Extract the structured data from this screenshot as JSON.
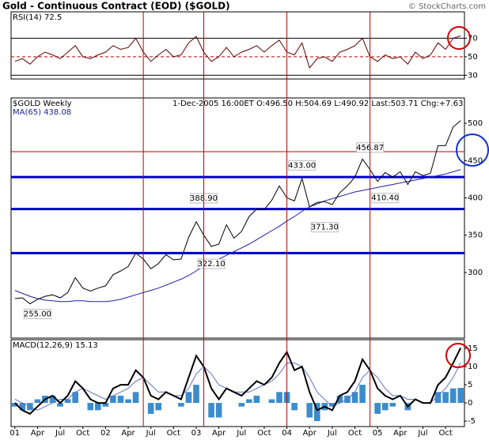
{
  "title": "Gold - Continuous Contract (EOD) ($GOLD)",
  "copyright": "© StockCharts.com",
  "chart_data": [
    {
      "type": "line",
      "label": "RSI(14) 72.5",
      "ylim": [
        26,
        98.5
      ],
      "yticks": [
        30,
        50,
        70
      ],
      "grid": true,
      "reference_line": {
        "value": 50,
        "color": "#c00000"
      },
      "series": [
        {
          "color": "#600000",
          "values": [
            45,
            48,
            42,
            50,
            55,
            52,
            48,
            55,
            62,
            50,
            48,
            52,
            55,
            62,
            58,
            60,
            70,
            55,
            45,
            52,
            58,
            50,
            52,
            65,
            72,
            55,
            45,
            50,
            60,
            50,
            55,
            58,
            62,
            55,
            62,
            68,
            55,
            52,
            65,
            38,
            48,
            50,
            45,
            55,
            58,
            62,
            70,
            50,
            45,
            52,
            48,
            50,
            42,
            55,
            48,
            52,
            65,
            58,
            70,
            72.5
          ]
        }
      ]
    },
    {
      "type": "line",
      "label": "$GOLD Weekly",
      "header": "1-Dec-2005 16:00ET O:496.50 H:504.69 L:490.92 Last:503.71 Chg:+7.63",
      "ylim": [
        212,
        534
      ],
      "yticks": [
        300,
        350,
        400,
        450,
        500
      ],
      "series": [
        {
          "name": "MA(65) 438.08",
          "color": "#2020a0",
          "values": [
            276,
            272,
            268,
            265,
            263,
            262,
            261,
            261,
            262,
            262,
            261,
            261,
            261,
            262,
            264,
            267,
            270,
            273,
            276,
            279,
            283,
            287,
            291,
            296,
            302,
            308,
            313,
            318,
            323,
            328,
            333,
            338,
            344,
            350,
            356,
            362,
            369,
            375,
            382,
            388,
            392,
            396,
            399,
            402,
            405,
            408,
            410,
            412,
            414,
            416,
            418,
            420,
            422,
            424,
            426,
            428,
            430,
            432,
            435,
            438.08
          ]
        },
        {
          "color": "#000000",
          "values": [
            265,
            266,
            258,
            264,
            268,
            270,
            266,
            273,
            293,
            279,
            275,
            279,
            282,
            297,
            302,
            308,
            326,
            318,
            305,
            312,
            324,
            317,
            318,
            347,
            368,
            350,
            335,
            338,
            364,
            346,
            355,
            375,
            385,
            384,
            397,
            416,
            400,
            396,
            426,
            388,
            394,
            395,
            391,
            407,
            416,
            428,
            452,
            438,
            422,
            434,
            428,
            435,
            418,
            435,
            430,
            433,
            470,
            470,
            495,
            503.71
          ]
        }
      ],
      "hlines": [
        {
          "value": 462,
          "color": "#c00000",
          "width": 1
        },
        {
          "value": 428,
          "color": "#0000cc",
          "width": 3
        },
        {
          "value": 385,
          "color": "#0000cc",
          "width": 3
        },
        {
          "value": 326,
          "color": "#0000cc",
          "width": 3
        }
      ],
      "vlines": {
        "color": "#c00000",
        "categories": [
          17,
          25,
          36,
          47
        ]
      },
      "annotations": [
        {
          "category": 3,
          "value": 255,
          "label": "255.00",
          "position": "below"
        },
        {
          "category": 25,
          "value": 388.9,
          "label": "388.90",
          "position": "above"
        },
        {
          "category": 26,
          "value": 322.1,
          "label": "322.10",
          "position": "below"
        },
        {
          "category": 38,
          "value": 433,
          "label": "433.00",
          "position": "above"
        },
        {
          "category": 41,
          "value": 371.3,
          "label": "371.30",
          "position": "below"
        },
        {
          "category": 47,
          "value": 456.87,
          "label": "456.87",
          "position": "above"
        },
        {
          "category": 49,
          "value": 410.4,
          "label": "410.40",
          "position": "below"
        }
      ]
    },
    {
      "type": "line",
      "label": "MACD(12,26,9) 15.13",
      "ylim": [
        -6.5,
        17.4
      ],
      "yticks": [
        -5,
        0,
        5,
        10,
        15
      ],
      "categories": [
        "01",
        null,
        null,
        "Apr",
        null,
        null,
        "Jul",
        null,
        null,
        "Oct",
        null,
        null,
        "02",
        null,
        null,
        "Apr",
        null,
        null,
        "Jul",
        null,
        null,
        "Oct",
        null,
        null,
        "03",
        null,
        null,
        "Apr",
        null,
        null,
        "Jul",
        null,
        null,
        "Oct",
        null,
        null,
        "04",
        null,
        null,
        "Apr",
        null,
        null,
        "Jul",
        null,
        null,
        "Oct",
        null,
        null,
        "05",
        null,
        null,
        "Apr",
        null,
        null,
        "Jul",
        null,
        null,
        "Oct",
        null,
        null
      ],
      "series": [
        {
          "type": "bar",
          "color": "#3c8ccc",
          "values": [
            -1,
            -2,
            -2,
            1,
            2,
            2,
            -1,
            1,
            3,
            0,
            -2,
            -2,
            -1,
            2,
            2,
            1,
            3,
            0,
            -3,
            -2,
            0,
            0,
            -1,
            3,
            5,
            0,
            -4,
            -4,
            0,
            0,
            -1,
            1,
            2,
            0,
            1,
            3,
            3,
            -2,
            0,
            -4,
            -5,
            -2,
            -1,
            2,
            2,
            3,
            5,
            0,
            -3,
            -2,
            -1,
            0,
            -2,
            0,
            0,
            0,
            3,
            3,
            4,
            4.13
          ]
        },
        {
          "color": "#6070c0",
          "values": [
            1,
            0,
            -1,
            -2,
            -1,
            0,
            1,
            1,
            3,
            4,
            3,
            2,
            1,
            2,
            3,
            4,
            6,
            7,
            5,
            3,
            3,
            2,
            2,
            4,
            8,
            10,
            8,
            5,
            4,
            3,
            3,
            3,
            4,
            5,
            6,
            8,
            11,
            11,
            10,
            7,
            3,
            1,
            -1,
            0,
            1,
            3,
            7,
            9,
            7,
            4,
            2,
            2,
            1,
            1,
            0,
            0,
            2,
            4,
            7,
            11
          ]
        },
        {
          "color": "#000000",
          "width": 2,
          "values": [
            0,
            -2,
            -3,
            -1,
            1,
            2,
            0,
            2,
            6,
            4,
            1,
            0,
            0,
            4,
            5,
            5,
            9,
            7,
            2,
            1,
            3,
            2,
            1,
            7,
            13,
            10,
            4,
            1,
            4,
            3,
            2,
            4,
            6,
            5,
            7,
            11,
            14,
            9,
            10,
            3,
            -2,
            -1,
            -2,
            2,
            3,
            6,
            12,
            9,
            4,
            2,
            1,
            2,
            -1,
            1,
            0,
            0,
            5,
            7,
            11,
            15.13
          ]
        }
      ]
    }
  ]
}
